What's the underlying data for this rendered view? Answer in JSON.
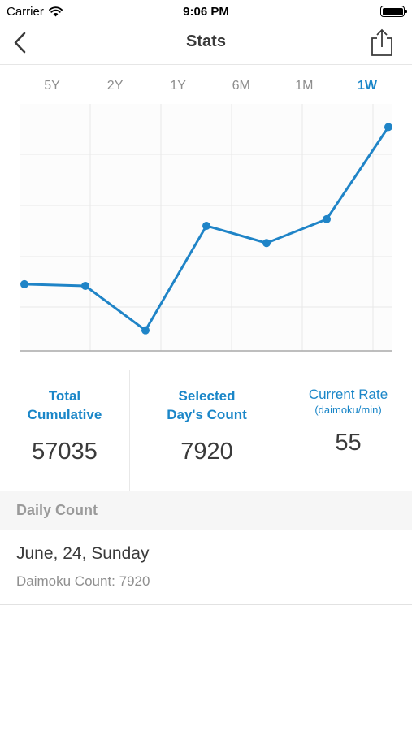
{
  "status_bar": {
    "carrier": "Carrier",
    "time": "9:06 PM"
  },
  "nav": {
    "title": "Stats"
  },
  "range_tabs": [
    {
      "label": "5Y",
      "active": false
    },
    {
      "label": "2Y",
      "active": false
    },
    {
      "label": "1Y",
      "active": false
    },
    {
      "label": "6M",
      "active": false
    },
    {
      "label": "1M",
      "active": false
    },
    {
      "label": "1W",
      "active": true
    }
  ],
  "chart_data": {
    "type": "line",
    "values": [
      6010,
      5990,
      5450,
      6720,
      6510,
      6800,
      7920
    ],
    "ylim": [
      5200,
      8200
    ],
    "grid": true,
    "line_color": "#1f84c7"
  },
  "stats": {
    "total": {
      "label_line1": "Total",
      "label_line2": "Cumulative",
      "value": "57035"
    },
    "selected": {
      "label_line1": "Selected",
      "label_line2": "Day's Count",
      "value": "7920"
    },
    "rate": {
      "label": "Current Rate",
      "sub": "(daimoku/min)",
      "value": "55"
    }
  },
  "daily": {
    "header": "Daily Count",
    "date": "June, 24, Sunday",
    "count": "Daimoku Count: 7920"
  },
  "colors": {
    "accent": "#1a86c8",
    "line": "#1f84c7"
  }
}
